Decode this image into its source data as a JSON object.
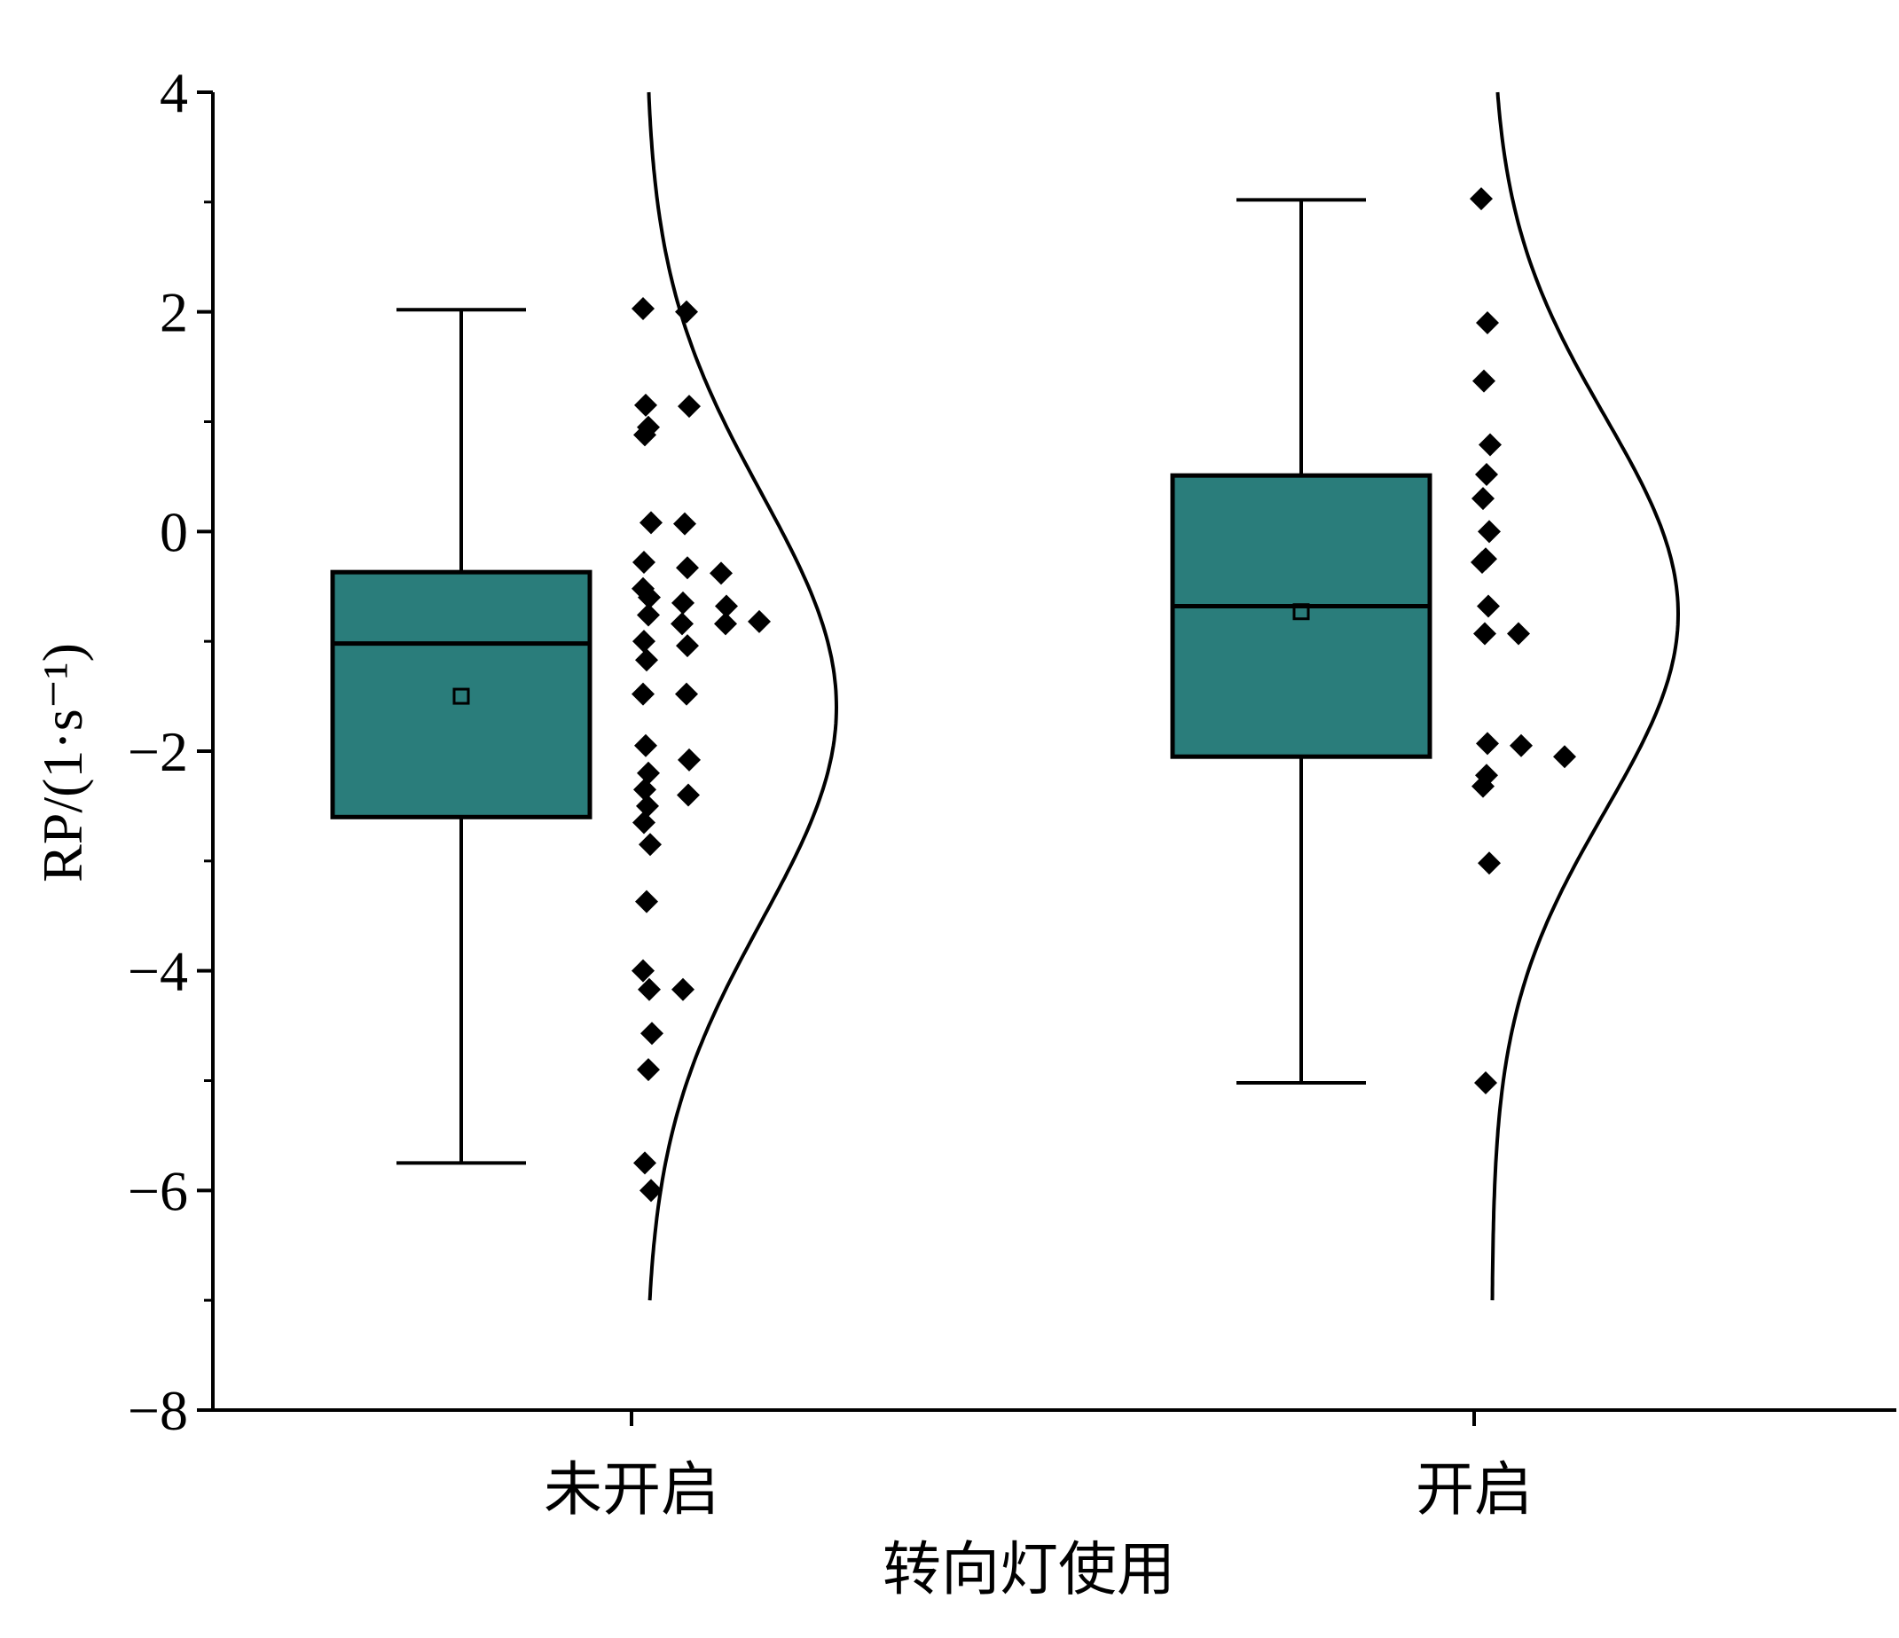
{
  "chart_data": {
    "type": "box",
    "title": "",
    "xlabel": "转向灯使用",
    "ylabel": "RP/(1·s⁻¹)",
    "ylim": [
      -8,
      4
    ],
    "yticks": [
      {
        "value": 4,
        "label": "4"
      },
      {
        "value": 2,
        "label": "2"
      },
      {
        "value": 0,
        "label": "0"
      },
      {
        "value": -2,
        "label": "−2"
      },
      {
        "value": -4,
        "label": "−4"
      },
      {
        "value": -6,
        "label": "−6"
      },
      {
        "value": -8,
        "label": "−8"
      }
    ],
    "categories": [
      "未开启",
      "开启"
    ],
    "box_color": "#2a7d7b",
    "groups": [
      {
        "category": "未开启",
        "whisker_low": -5.75,
        "q1": -2.6,
        "median": -1.02,
        "q3": -0.37,
        "whisker_high": 2.02,
        "mean": -1.5,
        "points": [
          2.03,
          2.0,
          1.15,
          1.14,
          0.95,
          0.88,
          0.08,
          0.07,
          -0.28,
          -0.33,
          -0.38,
          -0.52,
          -0.6,
          -0.65,
          -0.68,
          -0.76,
          -0.84,
          -0.84,
          -0.82,
          -1.0,
          -1.04,
          -1.17,
          -1.48,
          -1.48,
          -1.95,
          -2.08,
          -2.2,
          -2.35,
          -2.4,
          -2.5,
          -2.65,
          -2.85,
          -3.37,
          -4.0,
          -4.17,
          -4.17,
          -4.57,
          -4.9,
          -5.75,
          -6.0
        ],
        "density_mean": -1.6,
        "density_sd": 1.95
      },
      {
        "category": "开启",
        "whisker_low": -5.02,
        "q1": -2.05,
        "median": -0.68,
        "q3": 0.51,
        "whisker_high": 3.02,
        "mean": -0.73,
        "points": [
          3.03,
          1.9,
          1.37,
          0.79,
          0.52,
          0.3,
          0.0,
          -0.25,
          -0.28,
          -0.68,
          -0.93,
          -0.93,
          -1.93,
          -1.95,
          -2.05,
          -2.22,
          -2.32,
          -3.02,
          -5.02
        ],
        "density_mean": -0.75,
        "density_sd": 1.8
      }
    ]
  }
}
